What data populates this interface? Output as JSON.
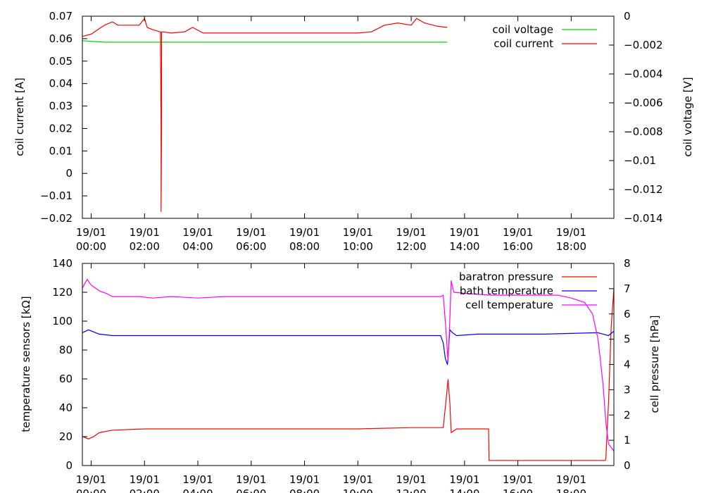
{
  "chart_data": [
    {
      "type": "line",
      "ylabel": "coil current [A]",
      "y2label": "coil voltage [V]",
      "xlim": [
        -0.33,
        19.6
      ],
      "ylim": [
        -0.02,
        0.07
      ],
      "y2lim": [
        -0.014,
        0
      ],
      "yticks": [
        "0.07",
        "0.06",
        "0.05",
        "0.04",
        "0.03",
        "0.02",
        "0.01",
        "0",
        "−0.01",
        "−0.02"
      ],
      "yticks_values": [
        0.07,
        0.06,
        0.05,
        0.04,
        0.03,
        0.02,
        0.01,
        0,
        -0.01,
        -0.02
      ],
      "y2ticks": [
        "0",
        "−0.002",
        "−0.004",
        "−0.006",
        "−0.008",
        "−0.01",
        "−0.012",
        "−0.014"
      ],
      "y2ticks_values": [
        0,
        -0.002,
        -0.004,
        -0.006,
        -0.008,
        -0.01,
        -0.012,
        -0.014
      ],
      "xticks_date": [
        "19/01",
        "19/01",
        "19/01",
        "19/01",
        "19/01",
        "19/01",
        "19/01",
        "19/01",
        "19/01",
        "19/01"
      ],
      "xticks_time": [
        "00:00",
        "02:00",
        "04:00",
        "06:00",
        "08:00",
        "10:00",
        "12:00",
        "14:00",
        "16:00",
        "18:00"
      ],
      "xticks_values": [
        0,
        2,
        4,
        6,
        8,
        10,
        12,
        14,
        16,
        18
      ],
      "grid": false,
      "legend": "top-right",
      "series": [
        {
          "name": "coil voltage",
          "color": "#00dd00",
          "axis": "y2",
          "x": [
            -0.33,
            0.5,
            2,
            4,
            6,
            8,
            10,
            12,
            13.35
          ],
          "y": [
            -0.0017,
            -0.0018,
            -0.0018,
            -0.0018,
            -0.0018,
            -0.0018,
            -0.0018,
            -0.0018,
            -0.0018
          ]
        },
        {
          "name": "coil current",
          "color": "#ff0000",
          "axis": "y",
          "x": [
            -0.33,
            0.0,
            0.5,
            0.8,
            1.0,
            1.4,
            1.8,
            2.0,
            2.1,
            2.3,
            2.6,
            2.6,
            2.62,
            2.62,
            2.64,
            2.64,
            2.7,
            3.0,
            3.5,
            3.8,
            4.2,
            5.0,
            6.0,
            7.0,
            8.0,
            9.0,
            10.0,
            10.5,
            11.0,
            11.5,
            12.0,
            12.2,
            12.5,
            13.0,
            13.35
          ],
          "y": [
            0.061,
            0.062,
            0.066,
            0.0675,
            0.066,
            0.066,
            0.066,
            0.069,
            0.065,
            0.064,
            0.063,
            0.059,
            0.022,
            -0.017,
            0.022,
            0.063,
            0.063,
            0.0625,
            0.063,
            0.065,
            0.0625,
            0.0625,
            0.0625,
            0.0625,
            0.0625,
            0.0625,
            0.0625,
            0.063,
            0.066,
            0.067,
            0.066,
            0.069,
            0.067,
            0.0655,
            0.065
          ]
        }
      ]
    },
    {
      "type": "line",
      "ylabel": "temperature sensors [kΩ]",
      "y2label": "cell pressure [hPa]",
      "xlim": [
        -0.33,
        19.6
      ],
      "ylim": [
        0,
        140
      ],
      "y2lim": [
        0,
        8
      ],
      "yticks": [
        "140",
        "120",
        "100",
        "80",
        "60",
        "40",
        "20",
        "0"
      ],
      "yticks_values": [
        140,
        120,
        100,
        80,
        60,
        40,
        20,
        0
      ],
      "y2ticks": [
        "8",
        "7",
        "6",
        "5",
        "4",
        "3",
        "2",
        "1",
        "0"
      ],
      "y2ticks_values": [
        8,
        7,
        6,
        5,
        4,
        3,
        2,
        1,
        0
      ],
      "xticks_date": [
        "19/01",
        "19/01",
        "19/01",
        "19/01",
        "19/01",
        "19/01",
        "19/01",
        "19/01",
        "19/01",
        "19/01"
      ],
      "xticks_time": [
        "00:00",
        "02:00",
        "04:00",
        "06:00",
        "08:00",
        "10:00",
        "12:00",
        "14:00",
        "16:00",
        "18:00"
      ],
      "xticks_values": [
        0,
        2,
        4,
        6,
        8,
        10,
        12,
        14,
        16,
        18
      ],
      "grid": false,
      "legend": "top-right",
      "series": [
        {
          "name": "baratron pressure",
          "color": "#ff0000",
          "axis": "y2",
          "x": [
            -0.33,
            -0.1,
            0.1,
            0.3,
            0.8,
            2,
            4,
            6,
            8,
            10,
            12,
            13.2,
            13.3,
            13.38,
            13.45,
            13.5,
            13.7,
            14.0,
            14.5,
            14.9,
            14.92,
            15.5,
            16,
            17,
            18,
            19.2,
            19.28,
            19.3,
            19.4,
            19.5,
            19.6
          ],
          "y": [
            1.15,
            1.05,
            1.15,
            1.3,
            1.4,
            1.45,
            1.45,
            1.45,
            1.45,
            1.45,
            1.5,
            1.5,
            2.5,
            3.4,
            2.5,
            1.3,
            1.45,
            1.45,
            1.45,
            1.45,
            0.2,
            0.2,
            0.2,
            0.2,
            0.2,
            0.2,
            0.2,
            0.3,
            2.5,
            5.5,
            7.0
          ]
        },
        {
          "name": "bath temperature",
          "color": "#0000ff",
          "axis": "y",
          "x": [
            -0.33,
            -0.1,
            0.3,
            0.8,
            2,
            4,
            6,
            8,
            10,
            12,
            13.1,
            13.2,
            13.28,
            13.36,
            13.45,
            13.55,
            13.7,
            14.5,
            16,
            17,
            18,
            19.0,
            19.2,
            19.4,
            19.6
          ],
          "y": [
            92,
            94,
            91,
            90,
            90,
            90,
            90,
            90,
            90,
            90,
            90,
            85,
            74,
            70,
            94,
            92,
            90,
            91,
            91,
            91,
            91.5,
            92,
            91,
            90,
            93
          ]
        },
        {
          "name": "cell temperature",
          "color": "#ff00ff",
          "axis": "y",
          "x": [
            -0.33,
            -0.15,
            0.0,
            0.3,
            0.6,
            0.8,
            1.2,
            1.8,
            2.3,
            3.0,
            4.0,
            5.0,
            6.0,
            8.0,
            10.0,
            12.0,
            13.1,
            13.2,
            13.3,
            13.38,
            13.44,
            13.5,
            13.6,
            14.2,
            15.0,
            16.0,
            17.0,
            17.5,
            18.0,
            18.5,
            18.8,
            19.0,
            19.1,
            19.2,
            19.3,
            19.4,
            19.6
          ],
          "y": [
            123,
            129,
            125,
            121,
            119,
            117,
            117,
            117,
            116,
            117,
            116,
            117,
            117,
            117,
            117,
            117,
            117,
            118,
            95,
            72,
            96,
            128,
            120,
            119,
            118,
            118,
            118,
            118,
            116,
            113,
            105,
            88,
            72,
            55,
            30,
            15,
            10
          ]
        }
      ]
    }
  ]
}
